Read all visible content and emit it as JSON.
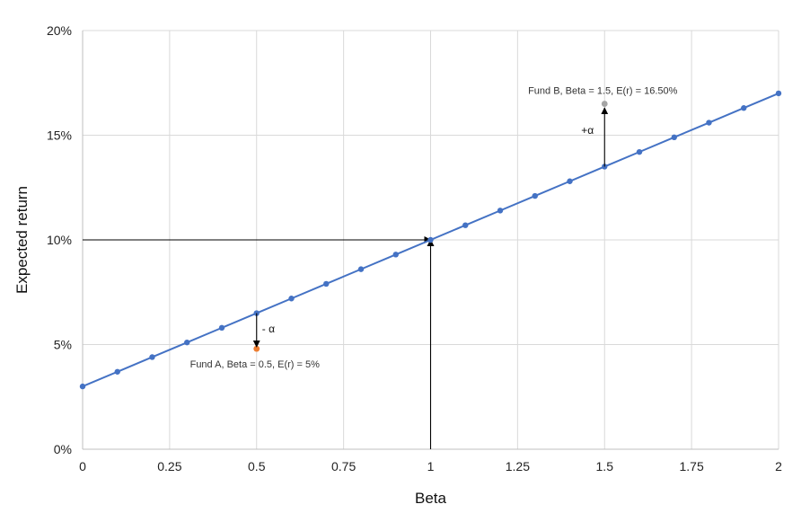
{
  "chart_data": {
    "type": "line",
    "title": "",
    "xlabel": "Beta",
    "ylabel": "Expected return",
    "xlim": [
      0,
      2
    ],
    "ylim": [
      0,
      0.2
    ],
    "grid": true,
    "x_ticks": [
      0,
      0.25,
      0.5,
      0.75,
      1,
      1.25,
      1.5,
      1.75,
      2
    ],
    "x_tick_labels": [
      "0",
      "0.25",
      "0.5",
      "0.75",
      "1",
      "1.25",
      "1.5",
      "1.75",
      "2"
    ],
    "y_ticks": [
      0,
      0.05,
      0.1,
      0.15,
      0.2
    ],
    "y_tick_labels": [
      "0%",
      "5%",
      "10%",
      "15%",
      "20%"
    ],
    "series": [
      {
        "color": "#4472C4",
        "x": [
          0,
          0.1,
          0.2,
          0.3,
          0.4,
          0.5,
          0.6,
          0.7,
          0.8,
          0.9,
          1.0,
          1.1,
          1.2,
          1.3,
          1.4,
          1.5,
          1.6,
          1.7,
          1.8,
          1.9,
          2.0
        ],
        "y": [
          0.03,
          0.037,
          0.044,
          0.051,
          0.058,
          0.065,
          0.072,
          0.079,
          0.086,
          0.093,
          0.1,
          0.107,
          0.114,
          0.121,
          0.128,
          0.135,
          0.142,
          0.149,
          0.156,
          0.163,
          0.17
        ]
      }
    ],
    "points": [
      {
        "x": 0.5,
        "y": 0.048,
        "color": "#ED7D31",
        "label": "Fund A, Beta = 0.5, E(r) = 5%"
      },
      {
        "x": 1.5,
        "y": 0.165,
        "color": "#A5A5A5",
        "label": "Fund B, Beta = 1.5, E(r) = 16.50%"
      }
    ],
    "reference_arrows": [
      {
        "from": [
          0,
          0.1
        ],
        "to": [
          1,
          0.1
        ]
      },
      {
        "from": [
          1,
          0
        ],
        "to": [
          1,
          0.1
        ]
      }
    ],
    "alpha_arrows": [
      {
        "from": [
          0.5,
          0.065
        ],
        "to": [
          0.5,
          0.049
        ],
        "label": "- α"
      },
      {
        "from": [
          1.5,
          0.135
        ],
        "to": [
          1.5,
          0.163
        ],
        "label": "+α"
      }
    ]
  }
}
